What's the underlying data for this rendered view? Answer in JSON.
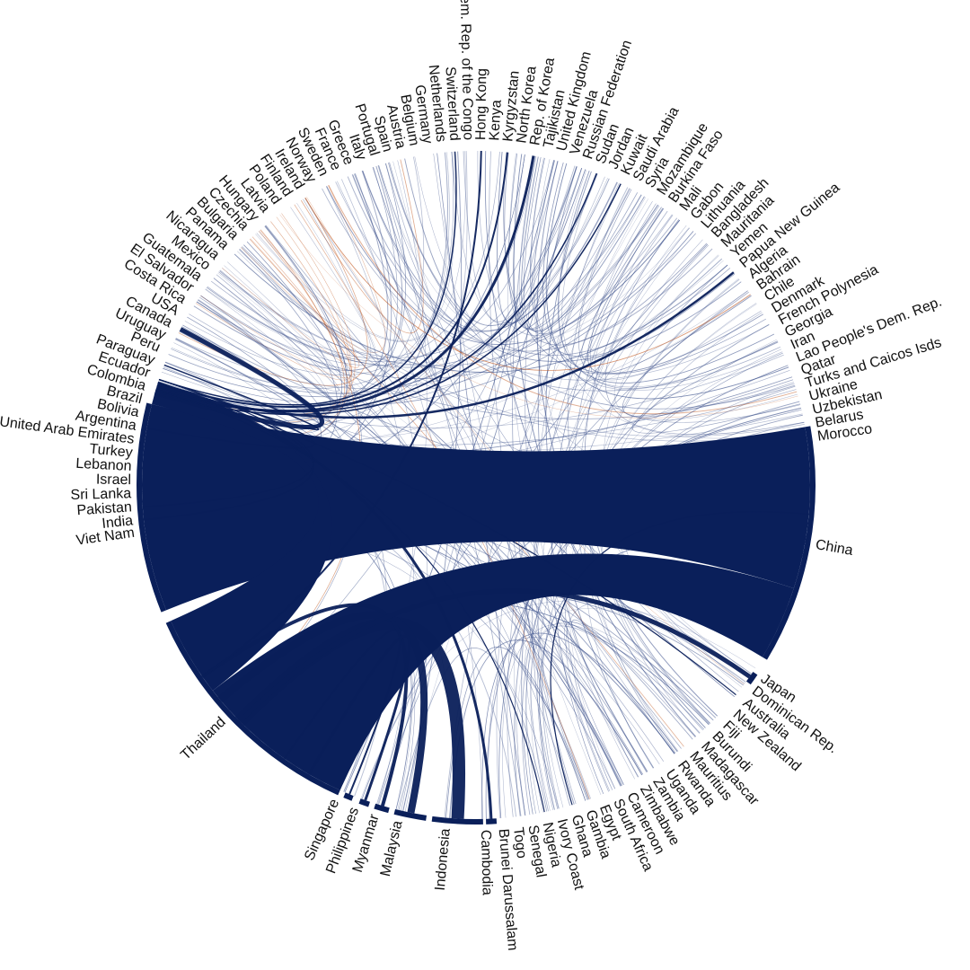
{
  "chart_data": {
    "type": "chord",
    "title": "",
    "colors": {
      "primary": "#0a1f5a",
      "accent": "#c25a22",
      "thin": "#3a4f8a"
    },
    "countries": [
      "China",
      "Japan",
      "Dominican Rep.",
      "Australia",
      "New Zealand",
      "Fiji",
      "Burundi",
      "Madagascar",
      "Mauritius",
      "Rwanda",
      "Uganda",
      "Zambia",
      "Zimbabwe",
      "Cameroon",
      "South Africa",
      "Egypt",
      "Gambia",
      "Ghana",
      "Ivory Coast",
      "Nigeria",
      "Senegal",
      "Togo",
      "Brunei Darussalam",
      "Cambodia",
      "Indonesia",
      "Malaysia",
      "Myanmar",
      "Philippines",
      "Singapore",
      "Thailand",
      "Viet Nam",
      "India",
      "Pakistan",
      "Sri Lanka",
      "Israel",
      "Lebanon",
      "Turkey",
      "United Arab Emirates",
      "Argentina",
      "Bolivia",
      "Brazil",
      "Colombia",
      "Ecuador",
      "Paraguay",
      "Peru",
      "Uruguay",
      "Canada",
      "USA",
      "Costa Rica",
      "El Salvador",
      "Guatemala",
      "Mexico",
      "Nicaragua",
      "Panama",
      "Bulgaria",
      "Czechia",
      "Hungary",
      "Latvia",
      "Poland",
      "Finland",
      "Ireland",
      "Norway",
      "Sweden",
      "France",
      "Greece",
      "Italy",
      "Portugal",
      "Spain",
      "Austria",
      "Belgium",
      "Germany",
      "Netherlands",
      "Switzerland",
      "Dem. Rep. of the Congo",
      "Hong Kong",
      "Kenya",
      "Kyrgyzstan",
      "North Korea",
      "Rep. of Korea",
      "Tajikistan",
      "United Kingdom",
      "Venezuela",
      "Russian Federation",
      "Sudan",
      "Jordan",
      "Kuwait",
      "Saudi Arabia",
      "Syria",
      "Mozambique",
      "Burkina Faso",
      "Mali",
      "Gabon",
      "Lithuania",
      "Bangladesh",
      "Mauritania",
      "Yemen",
      "Papua New Guinea",
      "Algeria",
      "Bahrain",
      "Chile",
      "Denmark",
      "French Polynesia",
      "Georgia",
      "Iran",
      "Lao People's Dem. Rep.",
      "Qatar",
      "Turks and Caicos Isds",
      "Ukraine",
      "Uzbekistan",
      "Belarus",
      "Morocco"
    ],
    "major_segments": [
      {
        "name": "China",
        "start_deg": 82,
        "end_deg": 134
      },
      {
        "name": "Viet Nam",
        "start_deg": -93,
        "end_deg": -52
      },
      {
        "name": "Thailand",
        "start_deg": -47,
        "end_deg": 5
      },
      {
        "name": "Singapore",
        "start_deg": 12,
        "end_deg": 13.5
      },
      {
        "name": "Philippines",
        "start_deg": 14.5,
        "end_deg": 16
      },
      {
        "name": "Myanmar",
        "start_deg": 17,
        "end_deg": 19.5
      },
      {
        "name": "Malaysia",
        "start_deg": 20,
        "end_deg": 25
      },
      {
        "name": "Indonesia",
        "start_deg": 26,
        "end_deg": 38
      },
      {
        "name": "Cambodia",
        "start_deg": 39,
        "end_deg": 41
      },
      {
        "name": "Japan",
        "start_deg": 144,
        "end_deg": 148
      }
    ],
    "thick_flows": [
      {
        "from": "Viet Nam",
        "to": "China",
        "width": 52
      },
      {
        "from": "Thailand",
        "to": "China",
        "width": 44
      },
      {
        "from": "Thailand",
        "to": "Viet Nam",
        "width": 18
      },
      {
        "from": "Indonesia",
        "to": "Thailand",
        "width": 14
      },
      {
        "from": "Malaysia",
        "to": "Thailand",
        "width": 8
      },
      {
        "from": "Myanmar",
        "to": "Thailand",
        "width": 4
      },
      {
        "from": "Philippines",
        "to": "Thailand",
        "width": 3
      },
      {
        "from": "Singapore",
        "to": "Thailand",
        "width": 2
      },
      {
        "from": "Cambodia",
        "to": "Viet Nam",
        "width": 3
      },
      {
        "from": "Japan",
        "to": "Thailand",
        "width": 5
      },
      {
        "from": "Canada",
        "to": "Viet Nam",
        "width": 5
      },
      {
        "from": "Rep. of Korea",
        "to": "Viet Nam",
        "width": 3
      },
      {
        "from": "Papua New Guinea",
        "to": "Viet Nam",
        "width": 2.5
      },
      {
        "from": "Kyrgyzstan",
        "to": "Viet Nam",
        "width": 2
      },
      {
        "from": "Switzerland",
        "to": "Viet Nam",
        "width": 1.5
      },
      {
        "from": "Kuwait",
        "to": "Viet Nam",
        "width": 1.5
      },
      {
        "from": "Sudan",
        "to": "Viet Nam",
        "width": 1.5
      },
      {
        "from": "Hong Kong",
        "to": "Thailand",
        "width": 2
      },
      {
        "from": "Paraguay",
        "to": "Viet Nam",
        "width": 1.5
      },
      {
        "from": "Argentina",
        "to": "Viet Nam",
        "width": 1.5
      },
      {
        "from": "Ghana",
        "to": "China",
        "width": 1
      },
      {
        "from": "Nigeria",
        "to": "Viet Nam",
        "width": 1
      },
      {
        "from": "Australia",
        "to": "Viet Nam",
        "width": 1
      },
      {
        "from": "India",
        "to": "Viet Nam",
        "width": 1.5
      },
      {
        "from": "Pakistan",
        "to": "Viet Nam",
        "width": 1
      }
    ]
  }
}
